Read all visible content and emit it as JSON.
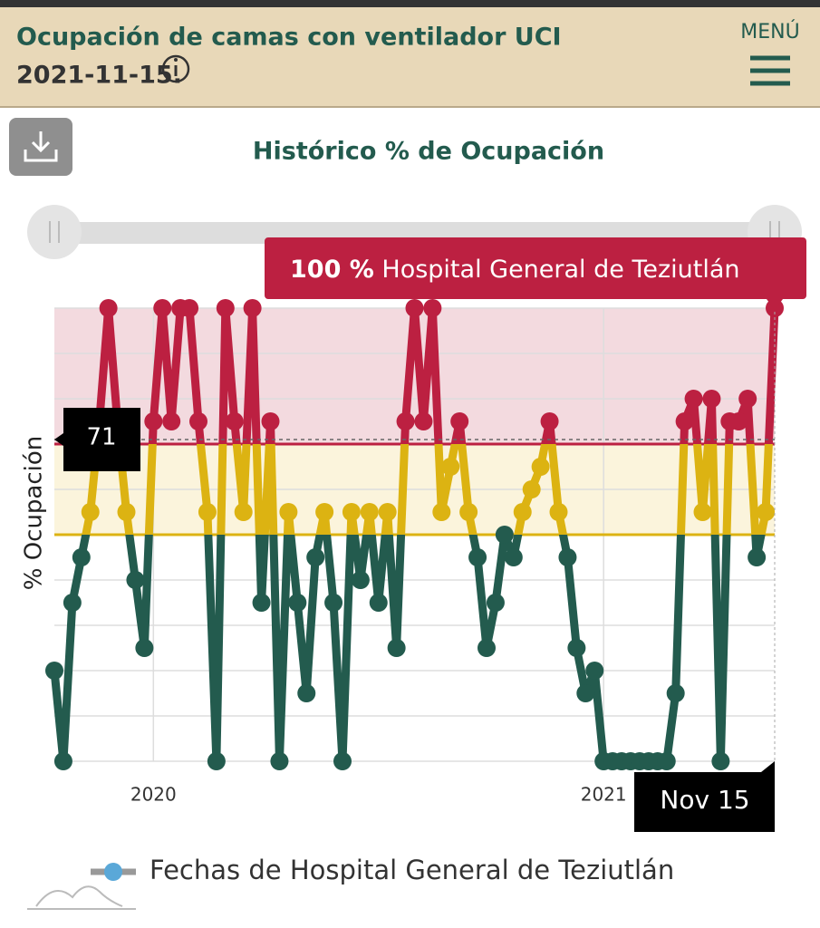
{
  "header": {
    "title": "Ocupación de camas con ventilador UCI",
    "date": "2021-11-15.",
    "menu": "MENÚ"
  },
  "chart_data": {
    "type": "line",
    "title": "Histórico % de Ocupación",
    "y_label": "% Ocupación",
    "x": [
      2019.78,
      2019.8,
      2019.82,
      2019.84,
      2019.86,
      2019.88,
      2019.9,
      2019.92,
      2019.94,
      2019.96,
      2019.98,
      2020.0,
      2020.02,
      2020.04,
      2020.06,
      2020.08,
      2020.1,
      2020.12,
      2020.14,
      2020.16,
      2020.18,
      2020.2,
      2020.22,
      2020.24,
      2020.26,
      2020.28,
      2020.3,
      2020.32,
      2020.34,
      2020.36,
      2020.38,
      2020.4,
      2020.42,
      2020.44,
      2020.46,
      2020.48,
      2020.5,
      2020.52,
      2020.54,
      2020.56,
      2020.58,
      2020.6,
      2020.62,
      2020.64,
      2020.66,
      2020.68,
      2020.7,
      2020.72,
      2020.74,
      2020.76,
      2020.78,
      2020.8,
      2020.82,
      2020.84,
      2020.86,
      2020.88,
      2020.9,
      2020.92,
      2020.94,
      2020.96,
      2020.98,
      2021.0,
      2021.02,
      2021.04,
      2021.06,
      2021.08,
      2021.1,
      2021.12,
      2021.14,
      2021.16,
      2021.18,
      2021.2,
      2021.22,
      2021.24,
      2021.26,
      2021.28,
      2021.3,
      2021.32,
      2021.34,
      2021.36,
      2021.38
    ],
    "series": [
      {
        "name": "Fechas de Hospital General de Teziutlán",
        "color": "#5aa8d8",
        "values": [
          20,
          0,
          35,
          45,
          55,
          75,
          100,
          75,
          55,
          40,
          25,
          75,
          100,
          75,
          100,
          100,
          75,
          55,
          0,
          100,
          75,
          55,
          100,
          35,
          75,
          0,
          55,
          35,
          15,
          45,
          55,
          35,
          0,
          55,
          40,
          55,
          35,
          55,
          25,
          75,
          100,
          75,
          100,
          55,
          65,
          75,
          55,
          45,
          25,
          35,
          50,
          45,
          55,
          60,
          65,
          75,
          55,
          45,
          25,
          15,
          20,
          0,
          0,
          0,
          0,
          0,
          0,
          0,
          0,
          15,
          75,
          80,
          55,
          80,
          0,
          75,
          75,
          80,
          45,
          55,
          100
        ]
      }
    ],
    "xlim": [
      2019.78,
      2021.38
    ],
    "xticks": [
      2020,
      2021
    ],
    "ylim": [
      0,
      100
    ],
    "grid_lines": [
      0,
      10,
      20,
      30,
      40,
      50,
      60,
      70,
      80,
      90,
      100
    ],
    "zones": [
      {
        "value": 50,
        "color": "#235b4e"
      },
      {
        "value": 70,
        "color": "#dcb312"
      },
      {
        "value": 100,
        "color": "#bc2041"
      }
    ],
    "bands": [
      {
        "from": 50,
        "to": 70,
        "color": "#fbf4dc"
      },
      {
        "from": 70,
        "to": 100,
        "color": "#f3dadf"
      }
    ],
    "tooltip": {
      "value_label": "100 %",
      "name": "Hospital General de Teziutlán"
    },
    "crosshair_y": 71,
    "crosshair_x_label": "Nov 15"
  }
}
